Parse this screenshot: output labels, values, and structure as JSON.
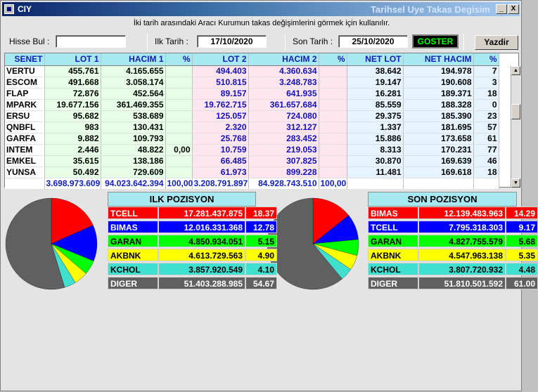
{
  "window": {
    "icon_text": "CIY",
    "title": "Tarihsel Uye Takas Degisim",
    "min_label": "_",
    "close_label": "X"
  },
  "info_text": "İki tarih arasındaki  Aracı Kurumun takas değişimlerini görmek için kullanılır.",
  "controls": {
    "hisse_label": "Hisse Bul :",
    "hisse_value": "",
    "ilk_label": "Ilk Tarih :",
    "ilk_value": "17/10/2020",
    "son_label": "Son Tarih :",
    "son_value": "25/10/2020",
    "goster": "GOSTER",
    "yazdir": "Yazdir"
  },
  "grid": {
    "headers": [
      "SENET",
      "LOT 1",
      "HACIM 1",
      "%",
      "LOT 2",
      "HACIM 2",
      "%",
      "NET LOT",
      "NET HACIM",
      "%"
    ],
    "rows": [
      [
        "VERTU",
        "455.761",
        "4.165.655",
        "",
        "494.403",
        "4.360.634",
        "",
        "38.642",
        "194.978",
        "7"
      ],
      [
        "ESCOM",
        "491.668",
        "3.058.174",
        "",
        "510.815",
        "3.248.783",
        "",
        "19.147",
        "190.608",
        "3"
      ],
      [
        "FLAP",
        "72.876",
        "452.564",
        "",
        "89.157",
        "641.935",
        "",
        "16.281",
        "189.371",
        "18"
      ],
      [
        "MPARK",
        "19.677.156",
        "361.469.355",
        "",
        "19.762.715",
        "361.657.684",
        "",
        "85.559",
        "188.328",
        "0"
      ],
      [
        "ERSU",
        "95.682",
        "538.689",
        "",
        "125.057",
        "724.080",
        "",
        "29.375",
        "185.390",
        "23"
      ],
      [
        "QNBFL",
        "983",
        "130.431",
        "",
        "2.320",
        "312.127",
        "",
        "1.337",
        "181.695",
        "57"
      ],
      [
        "GARFA",
        "9.882",
        "109.793",
        "",
        "25.768",
        "283.452",
        "",
        "15.886",
        "173.658",
        "61"
      ],
      [
        "INTEM",
        "2.446",
        "48.822",
        "0,00",
        "10.759",
        "219.053",
        "",
        "8.313",
        "170.231",
        "77"
      ],
      [
        "EMKEL",
        "35.615",
        "138.186",
        "",
        "66.485",
        "307.825",
        "",
        "30.870",
        "169.639",
        "46"
      ],
      [
        "YUNSA",
        "50.492",
        "729.609",
        "",
        "61.973",
        "899.228",
        "",
        "11.481",
        "169.618",
        "18"
      ]
    ],
    "totals": [
      "",
      "3.698.973.609",
      "94.023.642.394",
      "100,00",
      "3.208.791.897",
      "84.928.743.510",
      "100,00",
      "",
      "",
      ""
    ]
  },
  "ilk": {
    "title": "ILK POZISYON",
    "rows": [
      {
        "name": "TCELL",
        "value": "17.281.437.875",
        "pct": "18.37",
        "color": "#ff0000",
        "pctnum": 18.37
      },
      {
        "name": "BIMAS",
        "value": "12.016.331.368",
        "pct": "12.78",
        "color": "#0000ff",
        "pctnum": 12.78
      },
      {
        "name": "GARAN",
        "value": "4.850.934.051",
        "pct": "5.15",
        "color": "#00ff00",
        "pctnum": 5.15
      },
      {
        "name": "AKBNK",
        "value": "4.613.729.563",
        "pct": "4.90",
        "color": "#ffff00",
        "pctnum": 4.9
      },
      {
        "name": "KCHOL",
        "value": "3.857.920.549",
        "pct": "4.10",
        "color": "#40e0d0",
        "pctnum": 4.1
      },
      {
        "name": "DIGER",
        "value": "51.403.288.985",
        "pct": "54.67",
        "color": "#606060",
        "pctnum": 54.67
      }
    ]
  },
  "son": {
    "title": "SON POZISYON",
    "rows": [
      {
        "name": "BIMAS",
        "value": "12.139.483.963",
        "pct": "14.29",
        "color": "#ff0000",
        "pctnum": 14.29
      },
      {
        "name": "TCELL",
        "value": "7.795.318.303",
        "pct": "9.17",
        "color": "#0000ff",
        "pctnum": 9.17
      },
      {
        "name": "GARAN",
        "value": "4.827.755.579",
        "pct": "5.68",
        "color": "#00ff00",
        "pctnum": 5.68
      },
      {
        "name": "AKBNK",
        "value": "4.547.963.138",
        "pct": "5.35",
        "color": "#ffff00",
        "pctnum": 5.35
      },
      {
        "name": "KCHOL",
        "value": "3.807.720.932",
        "pct": "4.48",
        "color": "#40e0d0",
        "pctnum": 4.48
      },
      {
        "name": "DIGER",
        "value": "51.810.501.592",
        "pct": "61.00",
        "color": "#606060",
        "pctnum": 61.0
      }
    ]
  }
}
